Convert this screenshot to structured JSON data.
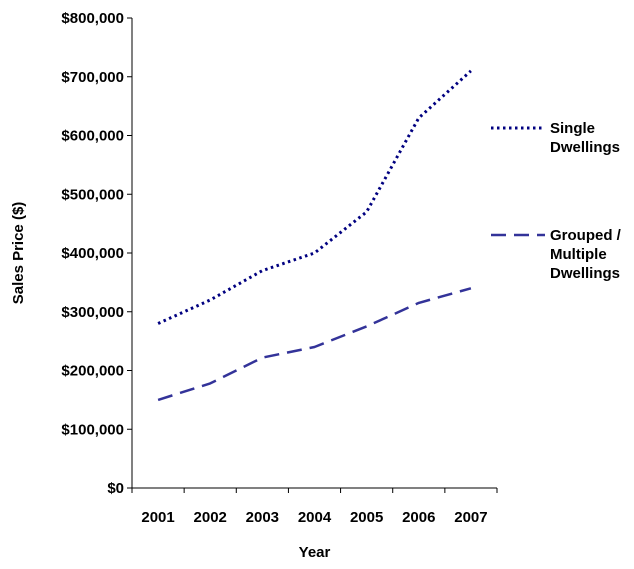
{
  "chart_data": {
    "type": "line",
    "title": "",
    "xlabel": "Year",
    "ylabel": "Sales Price ($)",
    "x": [
      "2001",
      "2002",
      "2003",
      "2004",
      "2005",
      "2006",
      "2007"
    ],
    "ylim": [
      0,
      800000
    ],
    "yticks": [
      0,
      100000,
      200000,
      300000,
      400000,
      500000,
      600000,
      700000,
      800000
    ],
    "ytick_labels": [
      "$0",
      "$100,000",
      "$200,000",
      "$300,000",
      "$400,000",
      "$500,000",
      "$600,000",
      "$700,000",
      "$800,000"
    ],
    "grid": false,
    "legend_position": "right",
    "series": [
      {
        "name": "Single Dwellings",
        "legend_lines": [
          "Single",
          "Dwellings"
        ],
        "values": [
          280000,
          320000,
          370000,
          400000,
          470000,
          630000,
          710000
        ],
        "color": "#000080",
        "style": "dotted"
      },
      {
        "name": "Grouped / Multiple Dwellings",
        "legend_lines": [
          "Grouped /",
          "Multiple",
          "Dwellings"
        ],
        "values": [
          150000,
          178000,
          222000,
          240000,
          275000,
          315000,
          340000
        ],
        "color": "#333399",
        "style": "dashed"
      }
    ]
  }
}
